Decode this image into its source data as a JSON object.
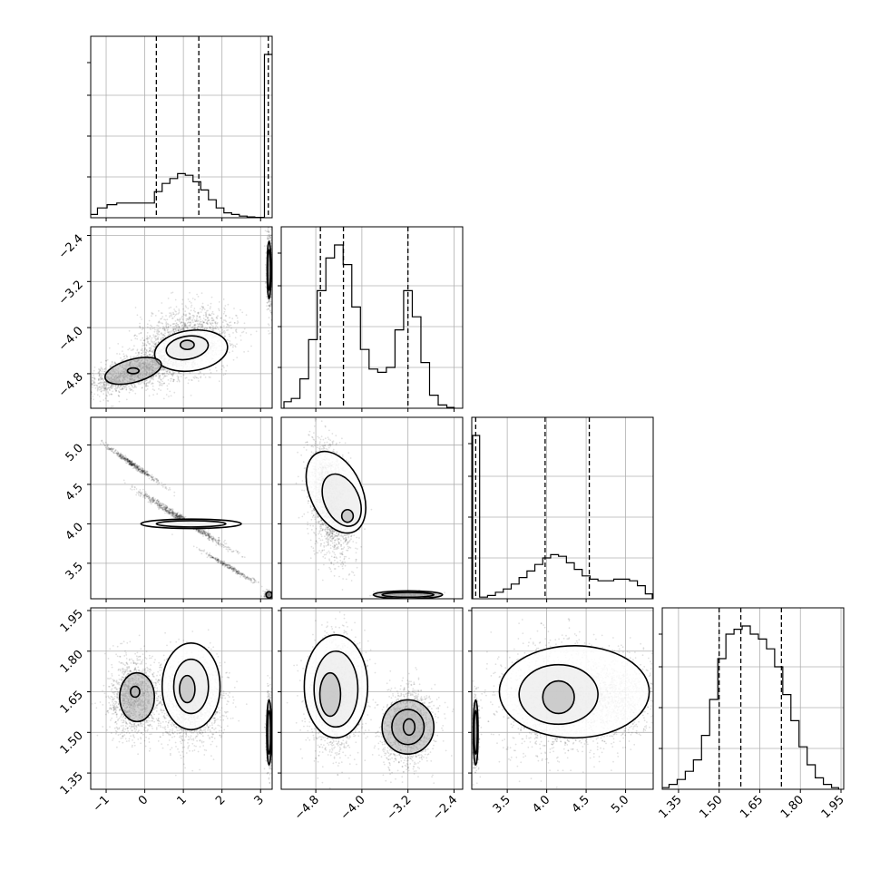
{
  "chart_data": {
    "type": "corner",
    "parameters": [
      {
        "name": "",
        "range": [
          -1.4,
          3.3
        ],
        "ticks": [
          -1,
          0,
          1,
          2,
          3
        ],
        "tick_labels": [
          "−1",
          "0",
          "1",
          "2",
          "3"
        ],
        "quantiles": [
          0.3,
          1.4,
          3.2
        ]
      },
      {
        "name": "",
        "range": [
          -5.4,
          -2.25
        ],
        "ticks": [
          -4.8,
          -4.0,
          -3.2,
          -2.4
        ],
        "tick_labels": [
          "−4.8",
          "−4.0",
          "−3.2",
          "−2.4"
        ],
        "quantiles": [
          -4.72,
          -4.32,
          -3.2
        ]
      },
      {
        "name": "",
        "range": [
          3.05,
          5.35
        ],
        "ticks": [
          3.5,
          4.0,
          4.5,
          5.0
        ],
        "tick_labels": [
          "3.5",
          "4.0",
          "4.5",
          "5.0"
        ],
        "quantiles": [
          3.1,
          3.98,
          4.54
        ]
      },
      {
        "name": "",
        "range": [
          1.29,
          1.96
        ],
        "ticks": [
          1.35,
          1.5,
          1.65,
          1.8,
          1.95
        ],
        "tick_labels": [
          "1.35",
          "1.50",
          "1.65",
          "1.80",
          "1.95"
        ],
        "quantiles": [
          1.5,
          1.58,
          1.73
        ]
      }
    ],
    "histograms": [
      {
        "x": [
          -1.35,
          -1.1,
          -0.85,
          -0.6,
          -0.35,
          -0.1,
          0.15,
          0.35,
          0.55,
          0.75,
          0.95,
          1.15,
          1.35,
          1.55,
          1.75,
          1.95,
          2.15,
          2.35,
          2.55,
          2.75,
          2.95,
          3.25
        ],
        "y": [
          0.02,
          0.06,
          0.08,
          0.09,
          0.09,
          0.09,
          0.09,
          0.16,
          0.21,
          0.24,
          0.27,
          0.26,
          0.22,
          0.17,
          0.11,
          0.06,
          0.03,
          0.02,
          0.01,
          0.005,
          0.002,
          1.0
        ]
      },
      {
        "x": [
          -5.3,
          -5.15,
          -5.0,
          -4.85,
          -4.7,
          -4.55,
          -4.4,
          -4.25,
          -4.1,
          -3.95,
          -3.8,
          -3.65,
          -3.5,
          -3.35,
          -3.2,
          -3.05,
          -2.9,
          -2.75,
          -2.6,
          -2.45
        ],
        "y": [
          0.04,
          0.06,
          0.18,
          0.42,
          0.72,
          0.92,
          1.0,
          0.88,
          0.62,
          0.36,
          0.24,
          0.22,
          0.25,
          0.48,
          0.72,
          0.56,
          0.28,
          0.08,
          0.02,
          0.005
        ]
      },
      {
        "x": [
          3.1,
          3.2,
          3.3,
          3.4,
          3.5,
          3.6,
          3.7,
          3.8,
          3.9,
          4.0,
          4.1,
          4.2,
          4.3,
          4.4,
          4.5,
          4.6,
          4.7,
          4.8,
          4.9,
          5.0,
          5.1,
          5.2,
          5.3
        ],
        "y": [
          1.0,
          0.01,
          0.02,
          0.04,
          0.06,
          0.09,
          0.13,
          0.17,
          0.21,
          0.25,
          0.27,
          0.26,
          0.22,
          0.18,
          0.14,
          0.12,
          0.11,
          0.11,
          0.12,
          0.12,
          0.11,
          0.08,
          0.03
        ]
      },
      {
        "x": [
          1.3,
          1.33,
          1.36,
          1.39,
          1.42,
          1.45,
          1.48,
          1.51,
          1.54,
          1.57,
          1.6,
          1.63,
          1.66,
          1.69,
          1.72,
          1.75,
          1.78,
          1.81,
          1.84,
          1.87,
          1.9,
          1.93
        ],
        "y": [
          0.01,
          0.03,
          0.06,
          0.11,
          0.18,
          0.33,
          0.55,
          0.8,
          0.95,
          0.98,
          1.0,
          0.95,
          0.92,
          0.86,
          0.75,
          0.58,
          0.42,
          0.26,
          0.15,
          0.07,
          0.03,
          0.01
        ]
      }
    ]
  }
}
